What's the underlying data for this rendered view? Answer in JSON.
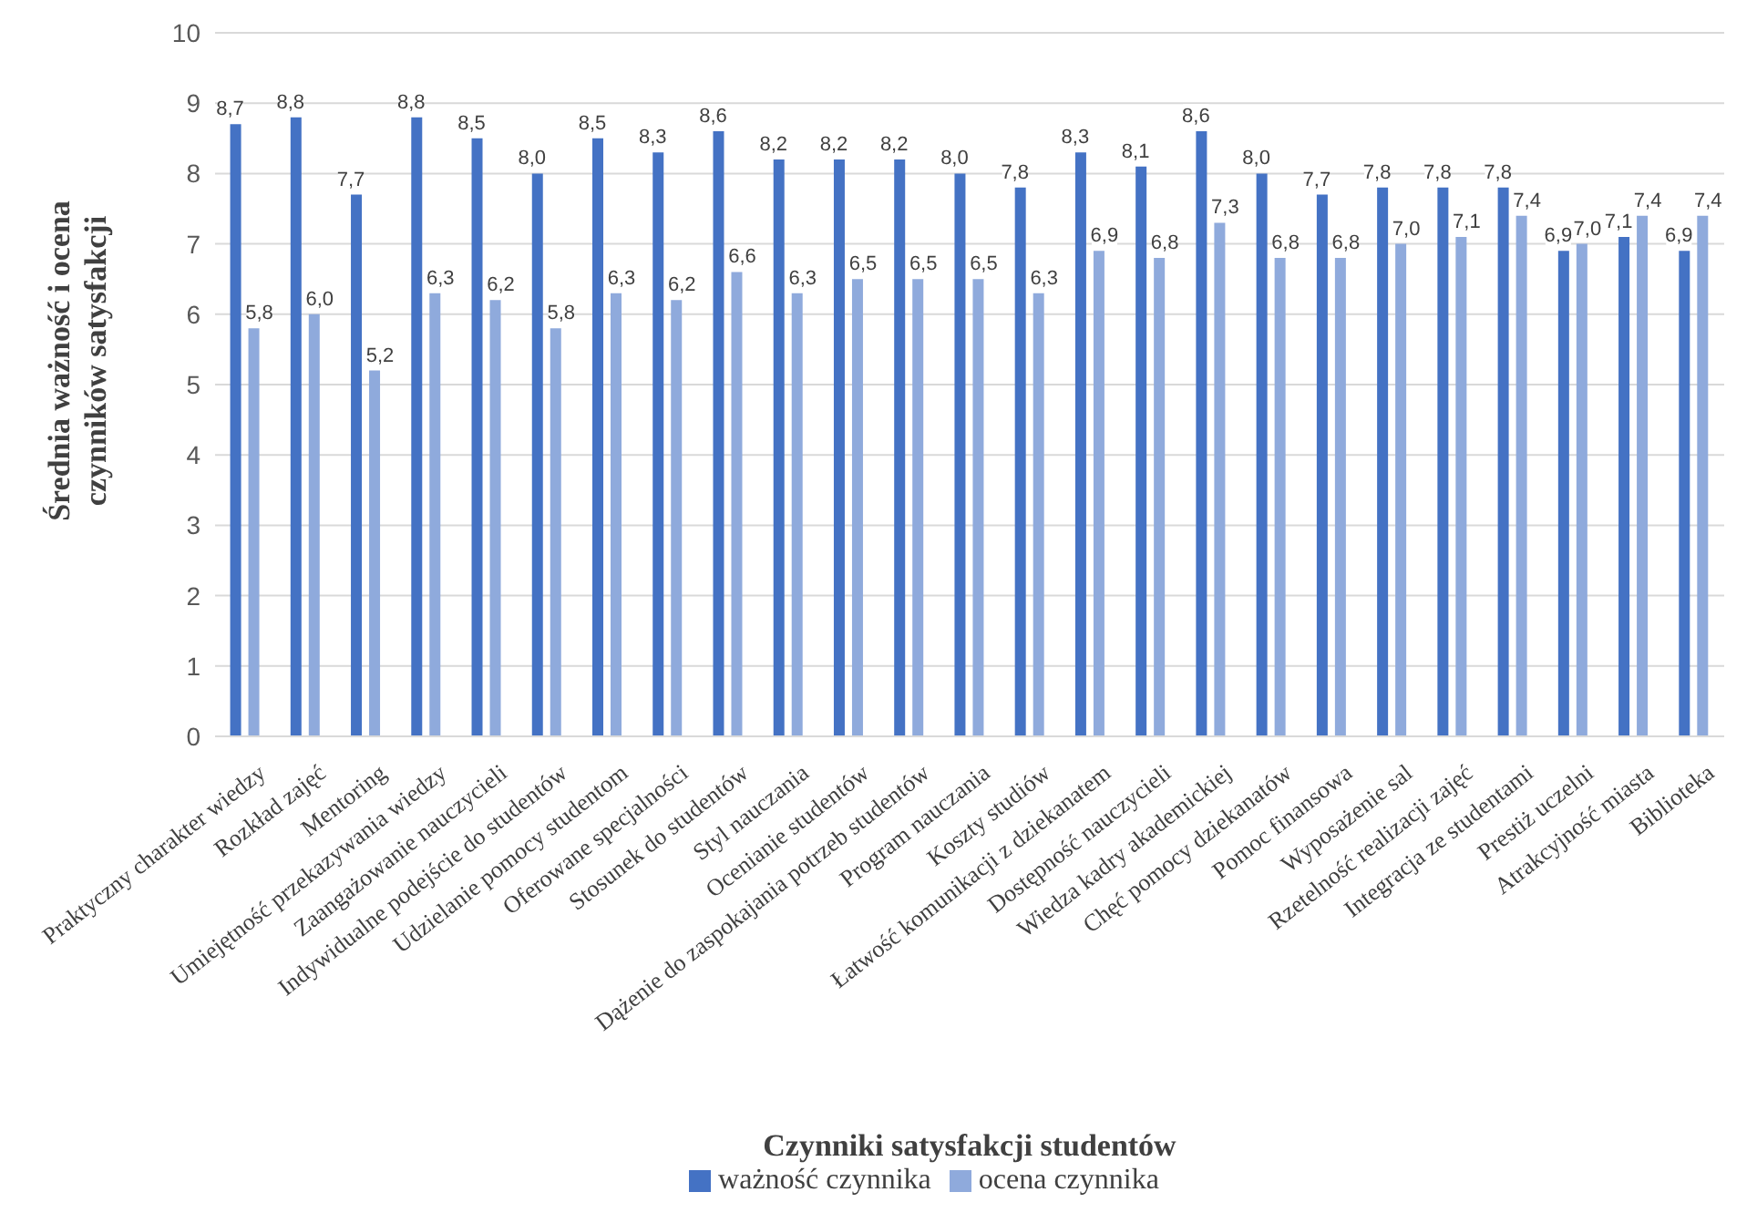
{
  "chart_data": {
    "type": "bar",
    "xlabel": "Czynniki satysfakcji studentów",
    "ylabel": "Średnia ważność i ocena czynników satysfakcji",
    "categories": [
      "Praktyczny charakter wiedzy",
      "Rozkład zajęć",
      "Mentoring",
      "Umiejętność przekazywania wiedzy",
      "Zaangażowanie nauczycieli",
      "Indywidualne podejście do studentów",
      "Udzielanie pomocy studentom",
      "Oferowane specjalności",
      "Stosunek do studentów",
      "Styl nauczania",
      "Ocenianie studentów",
      "Dążenie do zaspokajania potrzeb studentów",
      "Program nauczania",
      "Koszty studiów",
      "Łatwość komunikacji z dziekanatem",
      "Dostępność nauczycieli",
      "Wiedza kadry akademickiej",
      "Chęć pomocy dziekanatów",
      "Pomoc  finansowa",
      "Wyposażenie sal",
      "Rzetelność realizacji zajęć",
      "Integracja ze studentami",
      "Prestiż uczelni",
      "Atrakcyjność miasta",
      "Biblioteka"
    ],
    "series": [
      {
        "name": "ważność czynnika",
        "color": "#4472c4",
        "values": [
          8.7,
          8.8,
          7.7,
          8.8,
          8.5,
          8.0,
          8.5,
          8.3,
          8.6,
          8.2,
          8.2,
          8.2,
          8.0,
          7.8,
          8.3,
          8.1,
          8.6,
          8.0,
          7.7,
          7.8,
          7.8,
          7.8,
          6.9,
          7.1,
          6.9
        ],
        "value_labels": [
          "8,7",
          "8,8",
          "7,7",
          "8,8",
          "8,5",
          "8,0",
          "8,5",
          "8,3",
          "8,6",
          "8,2",
          "8,2",
          "8,2",
          "8,0",
          "7,8",
          "8,3",
          "8,1",
          "8,6",
          "8,0",
          "7,7",
          "7,8",
          "7,8",
          "7,8",
          "6,9",
          "7,1",
          "6,9"
        ]
      },
      {
        "name": "ocena czynnika",
        "color": "#8faadc",
        "values": [
          5.8,
          6.0,
          5.2,
          6.3,
          6.2,
          5.8,
          6.3,
          6.2,
          6.6,
          6.3,
          6.5,
          6.5,
          6.5,
          6.3,
          6.9,
          6.8,
          7.3,
          6.8,
          6.8,
          7.0,
          7.1,
          7.4,
          7.0,
          7.4,
          7.4
        ],
        "value_labels": [
          "5,8",
          "6,0",
          "5,2",
          "6,3",
          "6,2",
          "5,8",
          "6,3",
          "6,2",
          "6,6",
          "6,3",
          "6,5",
          "6,5",
          "6,5",
          "6,3",
          "6,9",
          "6,8",
          "7,3",
          "6,8",
          "6,8",
          "7,0",
          "7,1",
          "7,4",
          "7,0",
          "7,4",
          "7,4"
        ]
      }
    ],
    "ylim": [
      0,
      10
    ],
    "yticks": [
      0,
      1,
      2,
      3,
      4,
      5,
      6,
      7,
      8,
      9,
      10
    ],
    "grid": "y",
    "legend": "bottom"
  }
}
